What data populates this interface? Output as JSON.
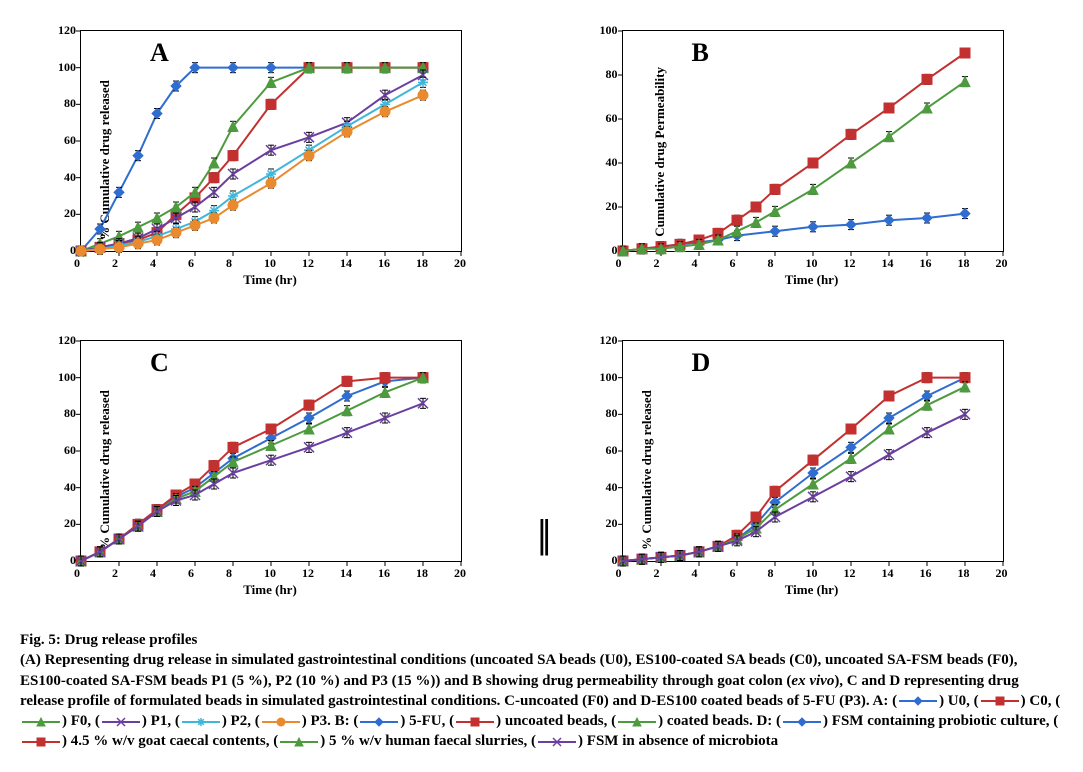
{
  "colors": {
    "U0": "#2f6dd0",
    "C0": "#c23030",
    "F0": "#4e9a3f",
    "P1": "#6a3fa0",
    "P2": "#3fb7d9",
    "P3": "#e98a2e",
    "five_fu": "#2f6dd0",
    "uncoated": "#c23030",
    "coated": "#4e9a3f",
    "probiotic": "#2f6dd0",
    "goat": "#c23030",
    "human": "#4e9a3f",
    "none": "#6a3fa0",
    "axis": "#000000",
    "bg": "#ffffff",
    "errbar": "#000000"
  },
  "axes": {
    "A": {
      "ylabel": "% Cumulative drug released",
      "xlabel": "Time (hr)",
      "xmax": 20,
      "ymax": 120,
      "xtick": 2,
      "ytick": 20,
      "label_fontsize": 13
    },
    "B": {
      "ylabel": "% Cumulative drug Permeability",
      "xlabel": "Time (hr)",
      "xmax": 20,
      "ymax": 100,
      "xtick": 2,
      "ytick": 20,
      "label_fontsize": 13
    },
    "C": {
      "ylabel": "% Cumulative drug released",
      "xlabel": "Time (hr)",
      "xmax": 20,
      "ymax": 120,
      "xtick": 2,
      "ytick": 20,
      "label_fontsize": 13
    },
    "D": {
      "ylabel": "% Cumulative drug released",
      "xlabel": "Time (hr)",
      "xmax": 20,
      "ymax": 120,
      "xtick": 2,
      "ytick": 20,
      "label_fontsize": 13
    }
  },
  "charts": {
    "A": {
      "panel": "A",
      "series": [
        {
          "name": "U0",
          "color": "#2f6dd0",
          "marker": "diamond",
          "x": [
            0,
            1,
            2,
            3,
            4,
            5,
            6,
            8,
            10,
            12,
            14,
            16,
            18
          ],
          "y": [
            0,
            12,
            32,
            52,
            75,
            90,
            100,
            100,
            100,
            100,
            100,
            100,
            100
          ]
        },
        {
          "name": "C0",
          "color": "#c23030",
          "marker": "square",
          "x": [
            0,
            1,
            2,
            3,
            4,
            5,
            6,
            7,
            8,
            10,
            12,
            14,
            16,
            18
          ],
          "y": [
            0,
            2,
            4,
            6,
            10,
            20,
            29,
            40,
            52,
            80,
            100,
            100,
            100,
            100
          ]
        },
        {
          "name": "F0",
          "color": "#4e9a3f",
          "marker": "triangle",
          "x": [
            0,
            1,
            2,
            3,
            4,
            5,
            6,
            7,
            8,
            10,
            12,
            14,
            16,
            18
          ],
          "y": [
            0,
            4,
            8,
            13,
            18,
            24,
            32,
            48,
            68,
            92,
            100,
            100,
            100,
            100
          ]
        },
        {
          "name": "P1",
          "color": "#6a3fa0",
          "marker": "x",
          "x": [
            0,
            1,
            2,
            3,
            4,
            5,
            6,
            7,
            8,
            10,
            12,
            14,
            16,
            18
          ],
          "y": [
            0,
            2,
            4,
            7,
            12,
            18,
            24,
            32,
            42,
            55,
            62,
            70,
            85,
            96
          ]
        },
        {
          "name": "P2",
          "color": "#3fb7d9",
          "marker": "star",
          "x": [
            0,
            1,
            2,
            3,
            4,
            5,
            6,
            7,
            8,
            10,
            12,
            14,
            16,
            18
          ],
          "y": [
            0,
            1,
            3,
            5,
            8,
            12,
            16,
            22,
            30,
            42,
            55,
            68,
            80,
            92
          ]
        },
        {
          "name": "P3",
          "color": "#e98a2e",
          "marker": "circle",
          "x": [
            0,
            1,
            2,
            3,
            4,
            5,
            6,
            7,
            8,
            10,
            12,
            14,
            16,
            18
          ],
          "y": [
            0,
            1,
            2,
            4,
            6,
            10,
            14,
            18,
            25,
            37,
            52,
            65,
            76,
            85
          ]
        }
      ]
    },
    "B": {
      "panel": "B",
      "series": [
        {
          "name": "5-FU",
          "color": "#2f6dd0",
          "marker": "diamond",
          "x": [
            0,
            1,
            2,
            3,
            4,
            5,
            6,
            8,
            10,
            12,
            14,
            16,
            18
          ],
          "y": [
            0,
            1,
            2,
            3,
            4,
            5,
            7,
            9,
            11,
            12,
            14,
            15,
            17
          ]
        },
        {
          "name": "uncoated",
          "color": "#c23030",
          "marker": "square",
          "x": [
            0,
            1,
            2,
            3,
            4,
            5,
            6,
            7,
            8,
            10,
            12,
            14,
            16,
            18
          ],
          "y": [
            0,
            1,
            2,
            3,
            5,
            8,
            14,
            20,
            28,
            40,
            53,
            65,
            78,
            90
          ]
        },
        {
          "name": "coated",
          "color": "#4e9a3f",
          "marker": "triangle",
          "x": [
            0,
            1,
            2,
            3,
            4,
            5,
            6,
            7,
            8,
            10,
            12,
            14,
            16,
            18
          ],
          "y": [
            0,
            1,
            1,
            2,
            3,
            5,
            9,
            13,
            18,
            28,
            40,
            52,
            65,
            77
          ]
        }
      ]
    },
    "C": {
      "panel": "C",
      "series": [
        {
          "name": "probiotic",
          "color": "#2f6dd0",
          "marker": "diamond",
          "x": [
            0,
            1,
            2,
            3,
            4,
            5,
            6,
            7,
            8,
            10,
            12,
            14,
            16,
            18
          ],
          "y": [
            0,
            5,
            12,
            20,
            28,
            35,
            40,
            48,
            56,
            67,
            78,
            90,
            98,
            100
          ]
        },
        {
          "name": "goat",
          "color": "#c23030",
          "marker": "square",
          "x": [
            0,
            1,
            2,
            3,
            4,
            5,
            6,
            7,
            8,
            10,
            12,
            14,
            16,
            18
          ],
          "y": [
            0,
            5,
            12,
            20,
            28,
            36,
            42,
            52,
            62,
            72,
            85,
            98,
            100,
            100
          ]
        },
        {
          "name": "human",
          "color": "#4e9a3f",
          "marker": "triangle",
          "x": [
            0,
            1,
            2,
            3,
            4,
            5,
            6,
            7,
            8,
            10,
            12,
            14,
            16,
            18
          ],
          "y": [
            0,
            5,
            12,
            19,
            27,
            34,
            38,
            46,
            54,
            63,
            72,
            82,
            92,
            100
          ]
        },
        {
          "name": "none",
          "color": "#6a3fa0",
          "marker": "x",
          "x": [
            0,
            1,
            2,
            3,
            4,
            5,
            6,
            7,
            8,
            10,
            12,
            14,
            16,
            18
          ],
          "y": [
            0,
            5,
            12,
            19,
            27,
            33,
            36,
            42,
            48,
            55,
            62,
            70,
            78,
            86
          ]
        }
      ]
    },
    "D": {
      "panel": "D",
      "series": [
        {
          "name": "probiotic",
          "color": "#2f6dd0",
          "marker": "diamond",
          "x": [
            0,
            1,
            2,
            3,
            4,
            5,
            6,
            7,
            8,
            10,
            12,
            14,
            16,
            18
          ],
          "y": [
            0,
            1,
            2,
            3,
            5,
            8,
            12,
            20,
            32,
            48,
            62,
            78,
            90,
            100
          ]
        },
        {
          "name": "goat",
          "color": "#c23030",
          "marker": "square",
          "x": [
            0,
            1,
            2,
            3,
            4,
            5,
            6,
            7,
            8,
            10,
            12,
            14,
            16,
            18
          ],
          "y": [
            0,
            1,
            2,
            3,
            5,
            8,
            14,
            24,
            38,
            55,
            72,
            90,
            100,
            100
          ]
        },
        {
          "name": "human",
          "color": "#4e9a3f",
          "marker": "triangle",
          "x": [
            0,
            1,
            2,
            3,
            4,
            5,
            6,
            7,
            8,
            10,
            12,
            14,
            16,
            18
          ],
          "y": [
            0,
            1,
            2,
            3,
            5,
            8,
            12,
            18,
            28,
            42,
            56,
            72,
            85,
            95
          ]
        },
        {
          "name": "none",
          "color": "#6a3fa0",
          "marker": "x",
          "x": [
            0,
            1,
            2,
            3,
            4,
            5,
            6,
            7,
            8,
            10,
            12,
            14,
            16,
            18
          ],
          "y": [
            0,
            1,
            2,
            3,
            5,
            8,
            11,
            16,
            24,
            35,
            46,
            58,
            70,
            80
          ]
        }
      ]
    }
  },
  "style": {
    "line_width": 2,
    "marker_size": 5,
    "errbar_half": 3,
    "panel_label_fontsize": 26
  },
  "caption": {
    "title": "Fig. 5: Drug release profiles",
    "body_parts": [
      "(A) Representing drug release in simulated gastrointestinal conditions (uncoated SA beads (U0), ES100-coated SA beads (C0), uncoated SA-FSM beads (F0), ES100-coated SA-FSM beads P1 (5 %), P2 (10 %) and P3 (15 %)) and B showing drug permeability through goat colon (",
      "ex vivo",
      "), C and D representing drug release profile of formulated beads in simulated gastrointestinal conditions. C-uncoated (F0) and D-ES100 coated beads of 5-FU (P3). A: ("
    ],
    "legend_A": [
      {
        "color": "#2f6dd0",
        "marker": "diamond",
        "label": ") U0, ("
      },
      {
        "color": "#c23030",
        "marker": "square",
        "label": ") C0, ("
      },
      {
        "color": "#4e9a3f",
        "marker": "triangle",
        "label": ") F0, ("
      },
      {
        "color": "#6a3fa0",
        "marker": "x",
        "label": ") P1, ("
      },
      {
        "color": "#3fb7d9",
        "marker": "star",
        "label": ") P2, ("
      },
      {
        "color": "#e98a2e",
        "marker": "circle",
        "label": ") P3. B: ("
      }
    ],
    "legend_B": [
      {
        "color": "#2f6dd0",
        "marker": "diamond",
        "label": ") 5-FU, ("
      },
      {
        "color": "#c23030",
        "marker": "square",
        "label": ") uncoated beads, ("
      },
      {
        "color": "#4e9a3f",
        "marker": "triangle",
        "label": ") coated beads. D: ("
      }
    ],
    "legend_D": [
      {
        "color": "#2f6dd0",
        "marker": "diamond",
        "label": ") FSM containing probiotic culture, ("
      },
      {
        "color": "#c23030",
        "marker": "square",
        "label": ") 4.5 % w/v goat caecal contents, ("
      },
      {
        "color": "#4e9a3f",
        "marker": "triangle",
        "label": ") 5 % w/v human faecal slurries, ("
      },
      {
        "color": "#6a3fa0",
        "marker": "x",
        "label": ") FSM in absence of microbiota"
      }
    ]
  }
}
